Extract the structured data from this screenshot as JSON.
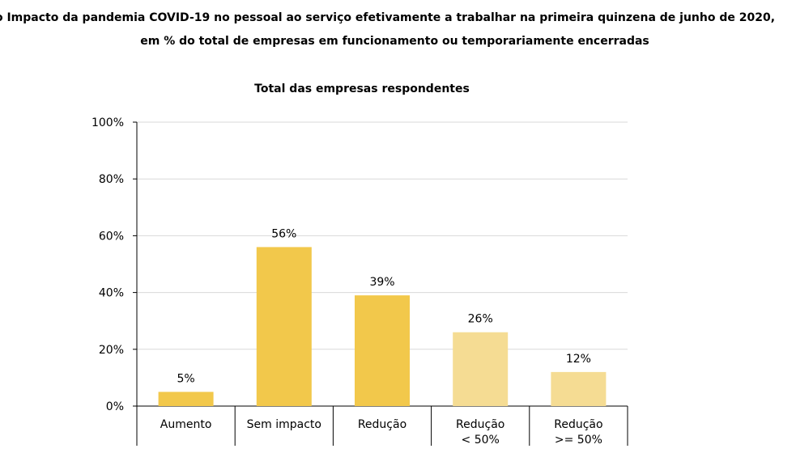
{
  "title_lines": [
    "o Impacto da pandemia COVID-19 no pessoal ao serviço efetivamente a trabalhar na primeira quinzena de junho de 2020,",
    "em % do total de empresas em funcionamento ou temporariamente encerradas"
  ],
  "chart_data": {
    "type": "bar",
    "title": "Total das empresas respondentes",
    "categories": [
      [
        "Aumento"
      ],
      [
        "Sem impacto"
      ],
      [
        "Redução"
      ],
      [
        "Redução",
        "< 50%"
      ],
      [
        "Redução",
        ">= 50%"
      ]
    ],
    "values": [
      5,
      56,
      39,
      26,
      12
    ],
    "value_labels": [
      "5%",
      "56%",
      "39%",
      "26%",
      "12%"
    ],
    "bar_colors": [
      "#F2C84B",
      "#F2C84B",
      "#F2C84B",
      "#F5DC93",
      "#F5DC93"
    ],
    "ylim": [
      0,
      100
    ],
    "yticks": [
      0,
      20,
      40,
      60,
      80,
      100
    ],
    "ytick_labels": [
      "0%",
      "20%",
      "40%",
      "60%",
      "80%",
      "100%"
    ],
    "grid": true,
    "xlabel": "",
    "ylabel": ""
  }
}
